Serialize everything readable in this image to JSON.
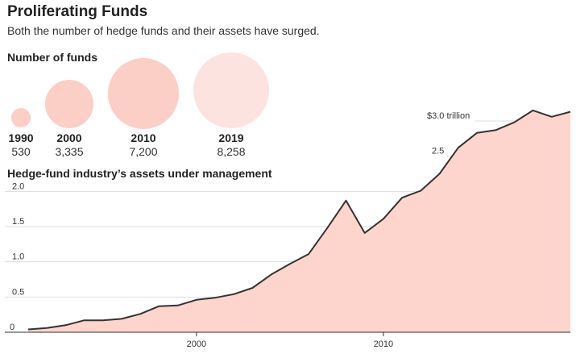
{
  "header": {
    "title": "Proliferating Funds",
    "subtitle": "Both the number of hedge funds and their assets have surged."
  },
  "funds_section": {
    "title": "Number of funds",
    "bubbles": [
      {
        "year": "1990",
        "count": "530"
      },
      {
        "year": "2000",
        "count": "3,335"
      },
      {
        "year": "2010",
        "count": "7,200"
      },
      {
        "year": "2019",
        "count": "8,258"
      }
    ]
  },
  "assets_section": {
    "title": "Hedge-fund industry’s assets under management"
  },
  "colors": {
    "bubble_fill": "#fccfc6",
    "bubble_fill_latest": "#fde3e0",
    "area_fill": "#fdd5cd",
    "line": "#333333",
    "gridline": "#dddddd"
  },
  "chart_data": [
    {
      "type": "bubble",
      "title": "Number of funds",
      "categories": [
        "1990",
        "2000",
        "2010",
        "2019"
      ],
      "values": [
        530,
        3335,
        7200,
        8258
      ]
    },
    {
      "type": "area",
      "title": "Hedge-fund industry’s assets under management",
      "x": [
        1991,
        1992,
        1993,
        1994,
        1995,
        1996,
        1997,
        1998,
        1999,
        2000,
        2001,
        2002,
        2003,
        2004,
        2005,
        2006,
        2007,
        2008,
        2009,
        2010,
        2011,
        2012,
        2013,
        2014,
        2015,
        2016,
        2017,
        2018,
        2019,
        2020
      ],
      "series": [
        {
          "values": [
            0.04,
            0.06,
            0.1,
            0.17,
            0.17,
            0.19,
            0.26,
            0.37,
            0.38,
            0.46,
            0.49,
            0.54,
            0.63,
            0.82,
            0.97,
            1.11,
            1.48,
            1.87,
            1.41,
            1.61,
            1.91,
            2.01,
            2.25,
            2.62,
            2.83,
            2.87,
            2.98,
            3.15,
            3.06,
            3.13
          ]
        }
      ],
      "xticks": [
        "2000",
        "2010"
      ],
      "yticks": [
        "0",
        "0.5",
        "1.0",
        "1.5",
        "2.0",
        "2.5",
        "$3.0 trillion"
      ],
      "ylim": [
        0,
        3.0
      ],
      "grid": true
    }
  ]
}
